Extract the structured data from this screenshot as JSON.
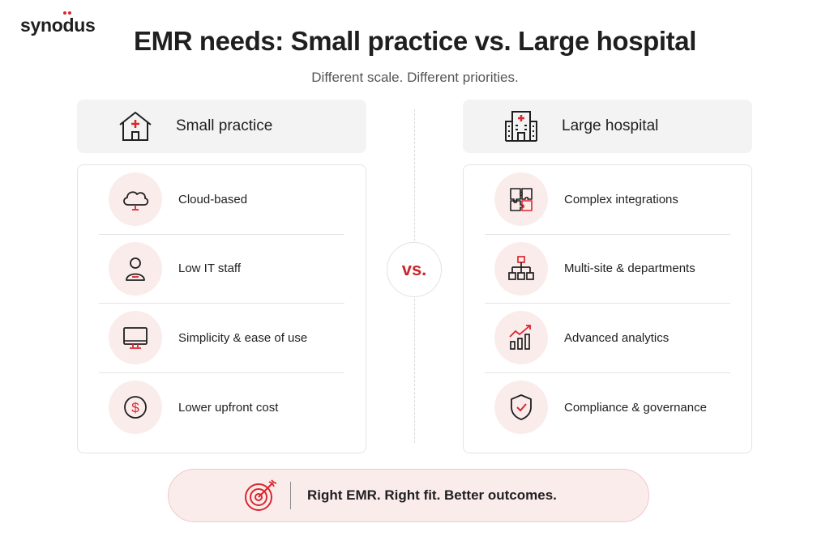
{
  "brand": {
    "logo_text": "synodus",
    "accent": "#d9272e"
  },
  "header": {
    "title": "EMR needs: Small practice vs. Large hospital",
    "subtitle": "Different scale. Different priorities."
  },
  "left": {
    "title": "Small practice",
    "icon": "house-medical-icon",
    "items": [
      {
        "label": "Cloud-based",
        "icon": "cloud-icon"
      },
      {
        "label": "Low IT staff",
        "icon": "user-icon"
      },
      {
        "label": "Simplicity & ease of use",
        "icon": "monitor-icon"
      },
      {
        "label": "Lower upfront cost",
        "icon": "dollar-icon"
      }
    ]
  },
  "right": {
    "title": "Large hospital",
    "icon": "hospital-building-icon",
    "items": [
      {
        "label": "Complex integrations",
        "icon": "puzzle-icon"
      },
      {
        "label": "Multi-site & departments",
        "icon": "org-chart-icon"
      },
      {
        "label": "Advanced analytics",
        "icon": "analytics-chart-icon"
      },
      {
        "label": "Compliance & governance",
        "icon": "shield-check-icon"
      }
    ]
  },
  "vs_label": "vs.",
  "footer": {
    "text": "Right EMR. Right fit. Better outcomes.",
    "icon": "target-icon"
  }
}
